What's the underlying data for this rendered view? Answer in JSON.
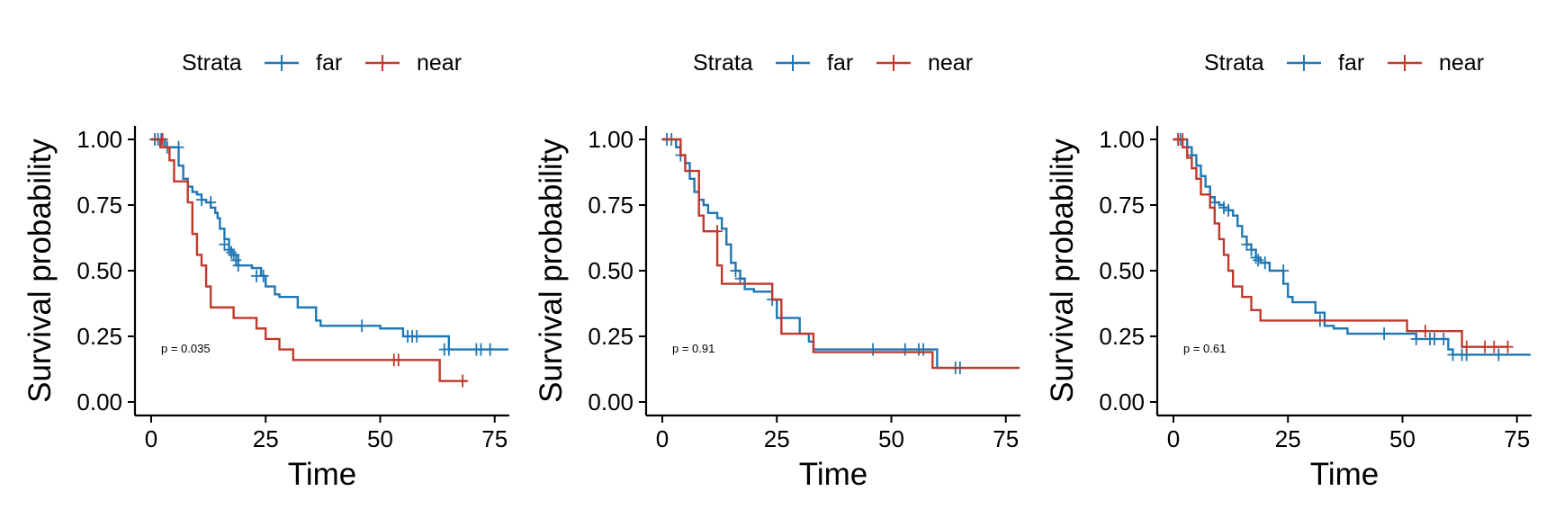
{
  "colors": {
    "far": "#1f77b4",
    "near": "#c0392b",
    "axis": "#000000"
  },
  "chart_data": [
    {
      "type": "line",
      "subtype": "kaplan-meier step",
      "legend_title": "Strata",
      "legend_position": "top",
      "xlabel": "Time",
      "ylabel": "Survival probability",
      "xlim": [
        0,
        78
      ],
      "ylim": [
        0,
        1
      ],
      "x_ticks": [
        "0",
        "25",
        "50",
        "75"
      ],
      "y_ticks": [
        "0.00",
        "0.25",
        "0.50",
        "0.75",
        "1.00"
      ],
      "annotation": "p = 0.035",
      "series": [
        {
          "name": "far",
          "x": [
            0,
            3,
            6,
            7,
            8,
            9,
            10,
            11,
            12,
            13,
            14,
            14.5,
            15,
            16,
            17,
            18,
            19,
            22,
            24,
            25,
            27,
            28,
            30,
            32,
            36,
            37,
            38,
            40,
            46,
            50,
            55,
            60,
            65,
            70,
            78
          ],
          "y": [
            1.0,
            0.97,
            0.9,
            0.85,
            0.82,
            0.8,
            0.79,
            0.77,
            0.76,
            0.74,
            0.72,
            0.7,
            0.66,
            0.62,
            0.58,
            0.56,
            0.52,
            0.51,
            0.48,
            0.44,
            0.41,
            0.4,
            0.4,
            0.36,
            0.31,
            0.29,
            0.29,
            0.29,
            0.29,
            0.28,
            0.25,
            0.25,
            0.2,
            0.2,
            0.2
          ],
          "censor_x": [
            0.8,
            1.5,
            2.2,
            3.5,
            6,
            11,
            13,
            16,
            17,
            17.5,
            18,
            18.5,
            19,
            23,
            24.5,
            46,
            56,
            57,
            58,
            64,
            65,
            71,
            72,
            74
          ],
          "censor_y": [
            1.0,
            1.0,
            1.0,
            0.97,
            0.97,
            0.77,
            0.76,
            0.6,
            0.58,
            0.57,
            0.56,
            0.54,
            0.52,
            0.48,
            0.48,
            0.29,
            0.25,
            0.25,
            0.25,
            0.2,
            0.2,
            0.2,
            0.2,
            0.2
          ]
        },
        {
          "name": "near",
          "x": [
            0,
            2,
            4,
            5,
            8,
            9,
            10,
            11,
            12,
            13,
            17,
            18,
            22,
            23,
            25,
            28,
            31,
            54,
            63,
            69
          ],
          "y": [
            1.0,
            0.97,
            0.92,
            0.84,
            0.76,
            0.64,
            0.56,
            0.52,
            0.44,
            0.36,
            0.36,
            0.32,
            0.32,
            0.28,
            0.24,
            0.2,
            0.16,
            0.16,
            0.08,
            0.08
          ],
          "censor_x": [
            2.5,
            53,
            54,
            68
          ],
          "censor_y": [
            1.0,
            0.16,
            0.16,
            0.08
          ]
        }
      ]
    },
    {
      "type": "line",
      "subtype": "kaplan-meier step",
      "legend_title": "Strata",
      "legend_position": "top",
      "xlabel": "Time",
      "ylabel": "Survival probability",
      "xlim": [
        0,
        78
      ],
      "ylim": [
        0,
        1
      ],
      "x_ticks": [
        "0",
        "25",
        "50",
        "75"
      ],
      "y_ticks": [
        "0.00",
        "0.25",
        "0.50",
        "0.75",
        "1.00"
      ],
      "annotation": "p = 0.91",
      "series": [
        {
          "name": "far",
          "x": [
            0,
            3,
            4,
            5,
            6,
            7,
            8,
            9,
            10,
            12,
            13,
            14,
            15,
            16,
            17,
            18,
            20,
            24,
            25,
            26,
            30,
            32,
            33,
            40,
            60,
            78
          ],
          "y": [
            1.0,
            0.97,
            0.94,
            0.91,
            0.85,
            0.8,
            0.77,
            0.75,
            0.72,
            0.7,
            0.66,
            0.6,
            0.53,
            0.5,
            0.47,
            0.43,
            0.42,
            0.39,
            0.32,
            0.32,
            0.26,
            0.23,
            0.2,
            0.2,
            0.13,
            0.13
          ],
          "censor_x": [
            1,
            2,
            4,
            16,
            17,
            24,
            46,
            53,
            56,
            57,
            64,
            65
          ],
          "censor_y": [
            1.0,
            1.0,
            0.94,
            0.5,
            0.47,
            0.39,
            0.2,
            0.2,
            0.2,
            0.2,
            0.13,
            0.13
          ]
        },
        {
          "name": "near",
          "x": [
            0,
            4,
            5,
            8,
            9,
            12,
            13,
            17,
            24,
            26,
            33,
            59,
            78
          ],
          "y": [
            1.0,
            0.94,
            0.88,
            0.71,
            0.65,
            0.52,
            0.45,
            0.45,
            0.39,
            0.26,
            0.19,
            0.13,
            0.13
          ],
          "censor_x": [
            12
          ],
          "censor_y": [
            0.65
          ]
        }
      ]
    },
    {
      "type": "line",
      "subtype": "kaplan-meier step",
      "legend_title": "Strata",
      "legend_position": "top",
      "xlabel": "Time",
      "ylabel": "Survival probability",
      "xlim": [
        0,
        78
      ],
      "ylim": [
        0,
        1
      ],
      "x_ticks": [
        "0",
        "25",
        "50",
        "75"
      ],
      "y_ticks": [
        "0.00",
        "0.25",
        "0.50",
        "0.75",
        "1.00"
      ],
      "annotation": "p = 0.61",
      "series": [
        {
          "name": "far",
          "x": [
            0,
            3,
            4,
            5,
            6,
            7,
            8,
            9,
            10,
            11,
            12,
            13,
            14,
            15,
            16,
            17,
            18,
            19,
            21,
            24,
            25,
            26,
            29,
            31,
            33,
            35,
            38,
            44,
            51,
            53,
            60,
            61,
            66,
            78
          ],
          "y": [
            1.0,
            0.97,
            0.94,
            0.9,
            0.86,
            0.82,
            0.78,
            0.76,
            0.75,
            0.74,
            0.73,
            0.71,
            0.67,
            0.63,
            0.6,
            0.58,
            0.55,
            0.53,
            0.5,
            0.45,
            0.4,
            0.38,
            0.38,
            0.34,
            0.29,
            0.28,
            0.26,
            0.26,
            0.26,
            0.24,
            0.2,
            0.18,
            0.18,
            0.18
          ],
          "censor_x": [
            1.5,
            4,
            9,
            11,
            12,
            16,
            17,
            18,
            18.5,
            20,
            24,
            32,
            46,
            53,
            56,
            57,
            59,
            61,
            63,
            64,
            71
          ],
          "censor_y": [
            1.0,
            0.94,
            0.76,
            0.74,
            0.73,
            0.6,
            0.58,
            0.55,
            0.54,
            0.53,
            0.5,
            0.31,
            0.26,
            0.24,
            0.24,
            0.24,
            0.24,
            0.18,
            0.18,
            0.18,
            0.18
          ]
        },
        {
          "name": "near",
          "x": [
            0,
            2,
            3,
            4,
            5,
            6,
            8,
            9,
            10,
            11,
            12,
            13,
            15,
            17,
            19,
            25,
            51,
            63,
            73
          ],
          "y": [
            1.0,
            0.97,
            0.93,
            0.89,
            0.85,
            0.79,
            0.74,
            0.68,
            0.62,
            0.56,
            0.5,
            0.44,
            0.4,
            0.35,
            0.31,
            0.31,
            0.27,
            0.21,
            0.21
          ],
          "censor_x": [
            1,
            2,
            55,
            64,
            68,
            70,
            73
          ],
          "censor_y": [
            1.0,
            1.0,
            0.27,
            0.21,
            0.21,
            0.21,
            0.21
          ]
        }
      ]
    }
  ]
}
